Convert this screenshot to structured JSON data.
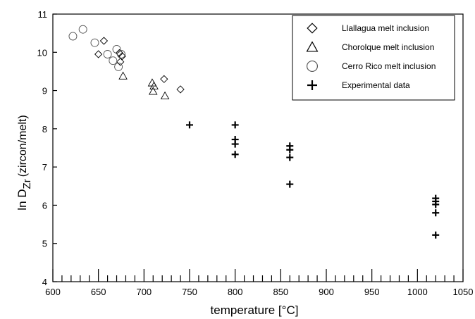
{
  "chart_data": {
    "type": "scatter",
    "xlabel": "temperature [°C]",
    "ylabel_main": "ln D",
    "ylabel_sub": "Zr",
    "ylabel_suffix": "(zircon/melt)",
    "xlim": [
      600,
      1050
    ],
    "ylim": [
      4,
      11
    ],
    "x_ticks": [
      600,
      650,
      700,
      750,
      800,
      850,
      900,
      950,
      1000,
      1050
    ],
    "y_ticks": [
      4,
      5,
      6,
      7,
      8,
      9,
      10,
      11
    ],
    "grid": false,
    "legend_position": "top-right",
    "series": [
      {
        "name": "Llallagua melt inclusion",
        "marker": "diamond",
        "points": [
          [
            650,
            9.95
          ],
          [
            656,
            10.3
          ],
          [
            673,
            9.98
          ],
          [
            674,
            9.75
          ],
          [
            676,
            9.9
          ],
          [
            722,
            9.3
          ],
          [
            740,
            9.03
          ]
        ]
      },
      {
        "name": "Chorolque melt inclusion",
        "marker": "triangle",
        "points": [
          [
            677,
            9.38
          ],
          [
            709,
            9.2
          ],
          [
            710,
            8.98
          ],
          [
            711,
            9.12
          ],
          [
            723,
            8.86
          ]
        ]
      },
      {
        "name": "Cerro Rico melt inclusion",
        "marker": "circle",
        "points": [
          [
            622,
            10.42
          ],
          [
            633,
            10.6
          ],
          [
            646,
            10.25
          ],
          [
            660,
            9.95
          ],
          [
            666,
            9.78
          ],
          [
            670,
            10.08
          ],
          [
            672,
            9.62
          ],
          [
            675,
            9.95
          ]
        ]
      },
      {
        "name": "Experimental data",
        "marker": "plus",
        "points": [
          [
            750,
            8.1
          ],
          [
            800,
            8.1
          ],
          [
            800,
            7.72
          ],
          [
            800,
            7.6
          ],
          [
            800,
            7.33
          ],
          [
            860,
            7.55
          ],
          [
            860,
            7.45
          ],
          [
            860,
            7.25
          ],
          [
            860,
            6.55
          ],
          [
            1020,
            6.18
          ],
          [
            1020,
            6.1
          ],
          [
            1020,
            6.02
          ],
          [
            1020,
            5.8
          ],
          [
            1020,
            5.22
          ]
        ]
      }
    ]
  }
}
